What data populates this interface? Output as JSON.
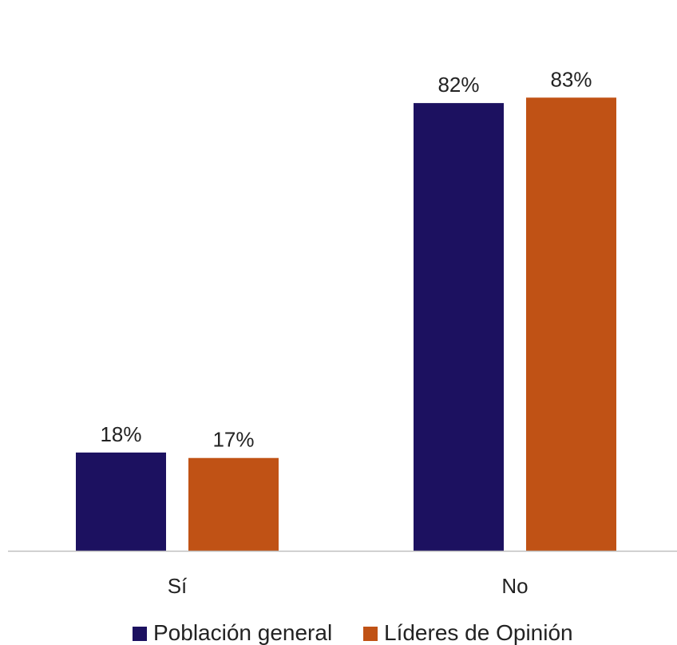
{
  "chart_data": {
    "type": "bar",
    "categories": [
      "Sí",
      "No"
    ],
    "series": [
      {
        "name": "Población general",
        "values": [
          18,
          82
        ],
        "labels": [
          "18%",
          "82%"
        ],
        "color": "#1c1160"
      },
      {
        "name": "Líderes de Opinión",
        "values": [
          17,
          83
        ],
        "labels": [
          "17%",
          "83%"
        ],
        "color": "#c05215"
      }
    ],
    "title": "",
    "xlabel": "",
    "ylabel": "",
    "ylim": [
      0,
      100
    ],
    "grid": false,
    "legend": "bottom",
    "axis_color": "#bfbfbf"
  }
}
